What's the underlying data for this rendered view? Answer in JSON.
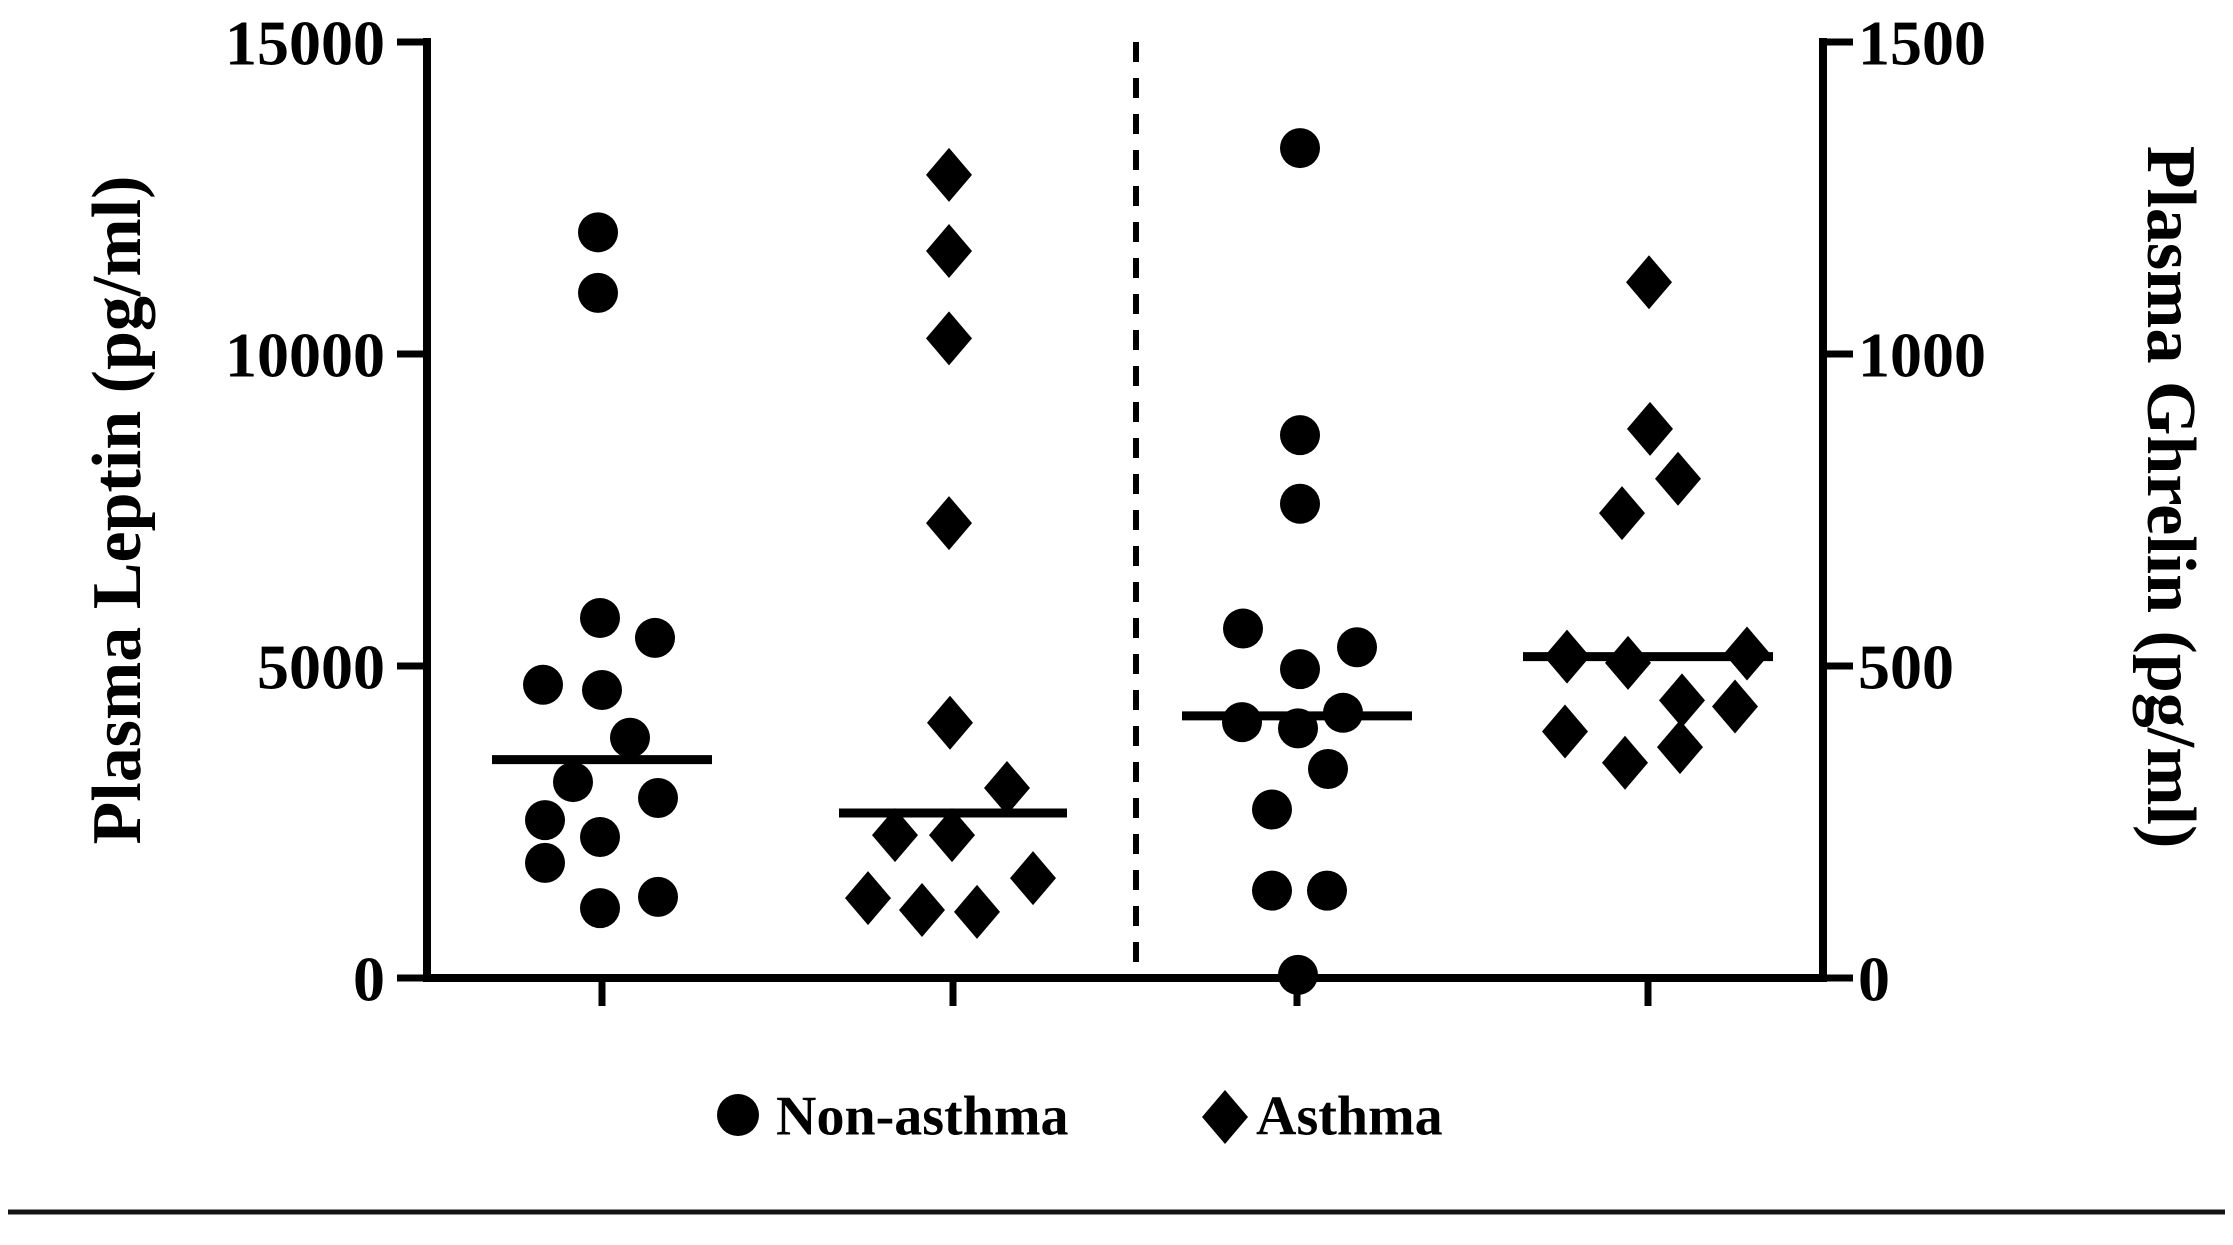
{
  "chart_data": {
    "type": "scatter",
    "title": "",
    "description": "Dot plot of plasma leptin (left panel, left axis) and plasma ghrelin (right panel, right axis) in non-asthma (circles) and asthma (diamonds) subjects, with horizontal median lines per group and a dashed vertical separator between panels.",
    "left_axis": {
      "title": "Plasma Leptin (pg/ml)",
      "range": [
        0,
        15000
      ],
      "ticks": [
        0,
        5000,
        10000,
        15000
      ]
    },
    "right_axis": {
      "title": "Plasma Ghrelin (pg/ml)",
      "range": [
        0,
        1500
      ],
      "ticks": [
        0,
        500,
        1000,
        1500
      ]
    },
    "x_axis": {
      "labels": [
        "",
        "",
        "",
        ""
      ],
      "note": "four unlabeled group ticks"
    },
    "grid": false,
    "legend_position": "bottom",
    "legend": [
      {
        "marker": "circle",
        "label": "Non-asthma"
      },
      {
        "marker": "diamond",
        "label": "Asthma"
      }
    ],
    "separator": {
      "style": "dashed-vertical",
      "between": "leptin and ghrelin panels"
    },
    "groups": [
      {
        "panel": "leptin",
        "series": "Non-asthma",
        "marker": "circle",
        "axis": "left",
        "median": 3500,
        "points": [
          [
            -4,
            11950
          ],
          [
            -4,
            10980
          ],
          [
            -2,
            5770
          ],
          [
            53,
            5450
          ],
          [
            -59,
            4700
          ],
          [
            0,
            4615
          ],
          [
            28,
            3850
          ],
          [
            -29,
            3140
          ],
          [
            56,
            2885
          ],
          [
            -57,
            2530
          ],
          [
            -2,
            2260
          ],
          [
            -57,
            1845
          ],
          [
            56,
            1300
          ],
          [
            -2,
            1120
          ]
        ]
      },
      {
        "panel": "leptin",
        "series": "Asthma",
        "marker": "diamond",
        "axis": "left",
        "median": 2645,
        "points": [
          [
            -4,
            12870
          ],
          [
            -4,
            11650
          ],
          [
            -4,
            10250
          ],
          [
            -4,
            7290
          ],
          [
            -3,
            4090
          ],
          [
            54,
            3045
          ],
          [
            -58,
            2290
          ],
          [
            -1,
            2290
          ],
          [
            80,
            1600
          ],
          [
            -85,
            1280
          ],
          [
            -31,
            1090
          ],
          [
            24,
            1060
          ]
        ]
      },
      {
        "panel": "ghrelin",
        "series": "Non-asthma",
        "marker": "circle",
        "axis": "right",
        "median": 420,
        "points": [
          [
            3,
            1330
          ],
          [
            3,
            870
          ],
          [
            3,
            760
          ],
          [
            -54,
            560
          ],
          [
            60,
            530
          ],
          [
            3,
            495
          ],
          [
            46,
            425
          ],
          [
            -55,
            410
          ],
          [
            1,
            400
          ],
          [
            31,
            335
          ],
          [
            -25,
            270
          ],
          [
            -25,
            140
          ],
          [
            30,
            140
          ],
          [
            1,
            5
          ]
        ]
      },
      {
        "panel": "ghrelin",
        "series": "Asthma",
        "marker": "diamond",
        "axis": "right",
        "median": 515,
        "points": [
          [
            1,
            1115
          ],
          [
            2,
            880
          ],
          [
            30,
            800
          ],
          [
            -26,
            745
          ],
          [
            -81,
            515
          ],
          [
            99,
            520
          ],
          [
            -20,
            505
          ],
          [
            34,
            445
          ],
          [
            87,
            435
          ],
          [
            -83,
            395
          ],
          [
            32,
            370
          ],
          [
            -23,
            345
          ]
        ]
      }
    ],
    "colors": {
      "marker": "#000000",
      "axis": "#000000",
      "background": "#ffffff"
    }
  }
}
